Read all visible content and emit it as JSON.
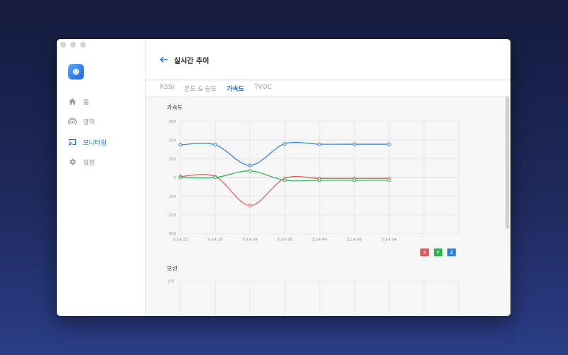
{
  "window": {
    "sidebar": {
      "items": [
        {
          "label": "홈",
          "icon": "home-icon",
          "active": false
        },
        {
          "label": "영역",
          "icon": "signal-icon",
          "active": false
        },
        {
          "label": "모니터링",
          "icon": "cast-icon",
          "active": true
        },
        {
          "label": "설정",
          "icon": "gear-icon",
          "active": false
        }
      ]
    },
    "header": {
      "title": "실시간 추이"
    },
    "tabs": [
      {
        "label": "RSSI",
        "active": false
      },
      {
        "label": "온도 & 습도",
        "active": false
      },
      {
        "label": "가속도",
        "active": true
      },
      {
        "label": "TVOC",
        "active": false
      }
    ],
    "sections": {
      "accel_title": "가속도",
      "motion_title": "모션",
      "motion_ylabel": "감지"
    },
    "legend": {
      "x": "X",
      "y": "Y",
      "z": "Z"
    }
  },
  "colors": {
    "accent": "#1a73e8",
    "x": "#e45757",
    "y": "#2cb34a",
    "z": "#2b7de9"
  },
  "chart_data": {
    "type": "line",
    "title": "가속도",
    "x": [
      "3:14:25",
      "3:14:29",
      "3:14:34",
      "3:14:39",
      "3:14:44",
      "3:14:49",
      "3:14:54"
    ],
    "ylim": [
      -300,
      300
    ],
    "yticks": [
      300,
      200,
      100,
      0,
      -100,
      -200,
      -300
    ],
    "grid": true,
    "legend_position": "bottom-right",
    "series": [
      {
        "name": "X",
        "color": "#e45757",
        "values": [
          5,
          5,
          -150,
          -5,
          -5,
          -5,
          -5
        ]
      },
      {
        "name": "Y",
        "color": "#2cb34a",
        "values": [
          0,
          0,
          35,
          -15,
          -15,
          -15,
          -15
        ]
      },
      {
        "name": "Z",
        "color": "#2b7de9",
        "values": [
          175,
          175,
          65,
          180,
          178,
          178,
          178
        ]
      }
    ]
  }
}
